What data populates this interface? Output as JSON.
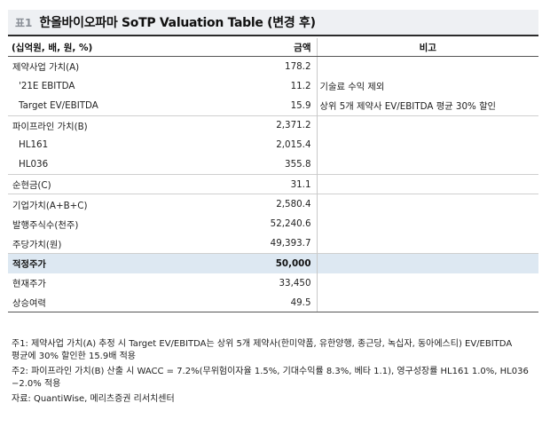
{
  "title": {
    "label": "표1",
    "text": "한올바이오파마 SoTP Valuation Table (변경 후)"
  },
  "table": {
    "headers": {
      "label": "(십억원, 배, 원, %)",
      "amount": "금액",
      "note": "비고"
    },
    "rows": [
      {
        "label": "제약사업 가치(A)",
        "amount": "178.2",
        "note": ""
      },
      {
        "label": "'21E EBITDA",
        "amount": "11.2",
        "note": "기술료 수익 제외"
      },
      {
        "label": "Target EV/EBITDA",
        "amount": "15.9",
        "note": "상위 5개 제약사 EV/EBITDA 평균 30% 할인"
      },
      {
        "label": "파이프라인 가치(B)",
        "amount": "2,371.2",
        "note": ""
      },
      {
        "label": "HL161",
        "amount": "2,015.4",
        "note": ""
      },
      {
        "label": "HL036",
        "amount": "355.8",
        "note": ""
      },
      {
        "label": "순현금(C)",
        "amount": "31.1",
        "note": ""
      },
      {
        "label": "기업가치(A+B+C)",
        "amount": "2,580.4",
        "note": ""
      },
      {
        "label": "발행주식수(천주)",
        "amount": "52,240.6",
        "note": ""
      },
      {
        "label": "주당가치(원)",
        "amount": "49,393.7",
        "note": ""
      },
      {
        "label": "적정주가",
        "amount": "50,000",
        "note": ""
      },
      {
        "label": "현재주가",
        "amount": "33,450",
        "note": ""
      },
      {
        "label": "상승여력",
        "amount": "49.5",
        "note": ""
      }
    ]
  },
  "notes": {
    "note1": "주1: 제약사업 가치(A) 추정 시 Target EV/EBITDA는 상위 5개 제약사(한미약품, 유한양행, 종근당, 녹십자, 동아에스티) EV/EBITDA 평균에 30% 할인한 15.9배 적용",
    "note2": "주2: 파이프라인 가치(B) 산출 시 WACC = 7.2%(무위험이자율 1.5%, 기대수익률 8.3%, 베타 1.1), 영구성장률 HL161 1.0%, HL036 −2.0% 적용",
    "source": "자료: QuantiWise, 메리츠증권 리서치센터"
  },
  "colors": {
    "title_bg": "#eef0f3",
    "highlight_row": "#dde8f2"
  }
}
